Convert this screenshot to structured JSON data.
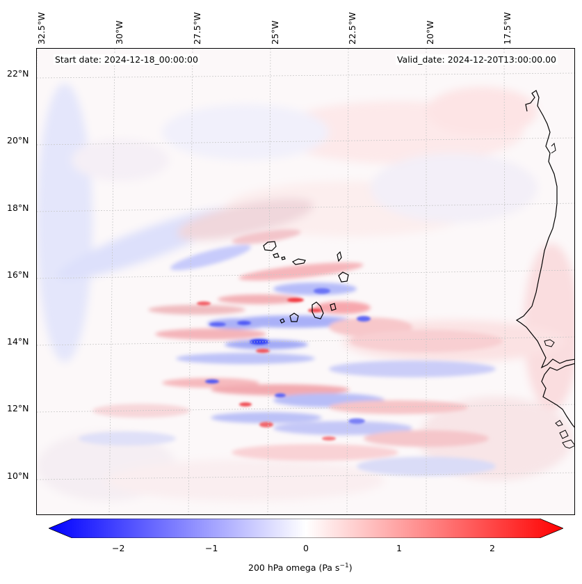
{
  "header": {
    "start_date": "Start date: 2024-12-18_00:00:00",
    "valid_date": "Valid_date: 2024-12-20T13:00:00.00"
  },
  "axes": {
    "lon_labels": [
      "32.5°W",
      "30°W",
      "27.5°W",
      "25°W",
      "22.5°W",
      "20°W",
      "17.5°W"
    ],
    "lat_labels": [
      "22°N",
      "20°N",
      "18°N",
      "16°N",
      "14°N",
      "12°N",
      "10°N"
    ]
  },
  "colorbar": {
    "label_main": "200 hPa omega (Pa s",
    "label_sup": "−1",
    "label_close": ")",
    "ticks": [
      "−2",
      "−1",
      "0",
      "1",
      "2"
    ],
    "range": [
      -2.7,
      2.7
    ],
    "color_min": "#0000ff",
    "color_mid": "#ffffff",
    "color_max": "#ff0000"
  },
  "map": {
    "projection_extent_deg": {
      "west": -32.8,
      "east": -15.7,
      "south": 8.9,
      "north": 22.8
    },
    "coastline_color": "#000000",
    "grid_color": "#c8c8c8",
    "variable": "200 hPa omega",
    "units": "Pa s-1"
  }
}
